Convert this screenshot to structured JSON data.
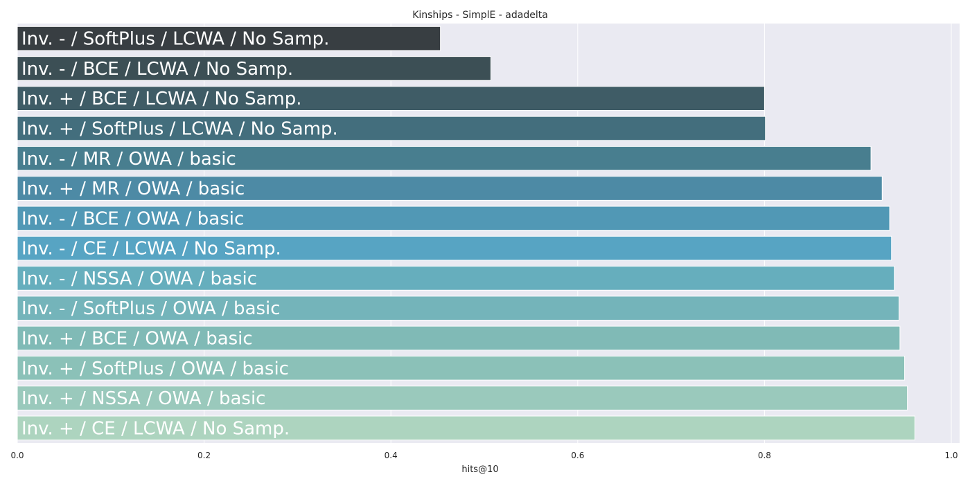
{
  "chart_data": {
    "type": "bar",
    "orientation": "horizontal",
    "title": "Kinships - SimplE - adadelta",
    "xlabel": "hits@10",
    "ylabel": "",
    "xlim": [
      0,
      1.0
    ],
    "xticks": [
      0.0,
      0.2,
      0.4,
      0.6,
      0.8,
      1.0
    ],
    "xtick_labels": [
      "0.0",
      "0.2",
      "0.4",
      "0.6",
      "0.8",
      "1.0"
    ],
    "grid": true,
    "background": "#eaeaf2",
    "categories": [
      "Inv. - / SoftPlus / LCWA / No Samp.",
      "Inv. - / BCE / LCWA / No Samp.",
      "Inv. + / BCE / LCWA / No Samp.",
      "Inv. + / SoftPlus / LCWA / No Samp.",
      "Inv. - / MR / OWA / basic",
      "Inv. + / MR / OWA / basic",
      "Inv. - / BCE / OWA / basic",
      "Inv. - / CE / LCWA / No Samp.",
      "Inv. - / NSSA / OWA / basic",
      "Inv. - / SoftPlus / OWA / basic",
      "Inv. + / BCE / OWA / basic",
      "Inv. + / SoftPlus / OWA / basic",
      "Inv. + / NSSA / OWA / basic",
      "Inv. + / CE / LCWA / No Samp."
    ],
    "values": [
      0.453,
      0.507,
      0.8,
      0.801,
      0.914,
      0.926,
      0.934,
      0.936,
      0.939,
      0.944,
      0.945,
      0.95,
      0.953,
      0.961
    ],
    "colors": [
      "#383e42",
      "#3c4f55",
      "#3f5c66",
      "#436e7d",
      "#487e8f",
      "#4d8aa5",
      "#5198b5",
      "#57a4c3",
      "#66aebd",
      "#74b4ba",
      "#80bab6",
      "#8bc1b8",
      "#9ac9bc",
      "#add4bf"
    ]
  }
}
